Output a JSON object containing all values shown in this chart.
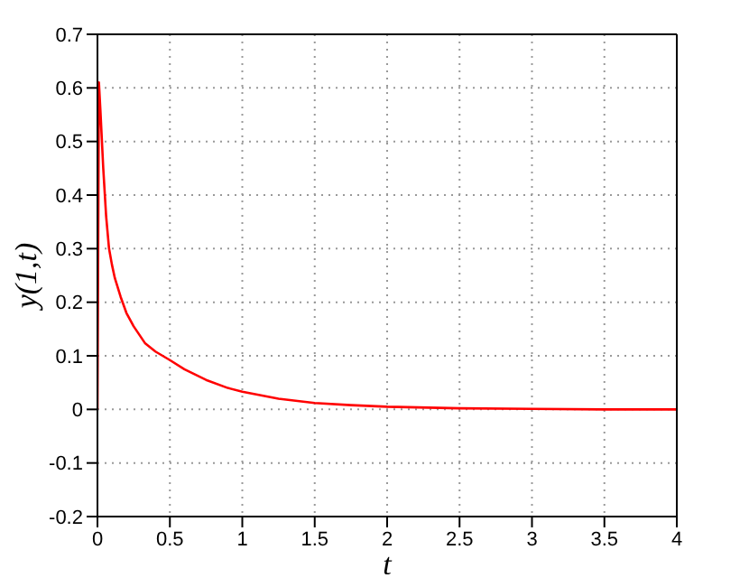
{
  "chart_data": {
    "type": "line",
    "xlabel": "t",
    "ylabel": "y(1,t)",
    "x": [
      0,
      0.01,
      0.02,
      0.04,
      0.06,
      0.08,
      0.1,
      0.12,
      0.16,
      0.2,
      0.25,
      0.33,
      0.4,
      0.5,
      0.6,
      0.75,
      0.9,
      1,
      1.25,
      1.5,
      1.75,
      2,
      2.5,
      3,
      3.5,
      4
    ],
    "series": [
      {
        "color": "#ff0000",
        "values": [
          0,
          0.61,
          0.56,
          0.45,
          0.36,
          0.3,
          0.27,
          0.245,
          0.21,
          0.18,
          0.155,
          0.123,
          0.108,
          0.092,
          0.075,
          0.055,
          0.04,
          0.033,
          0.02,
          0.012,
          0.008,
          0.005,
          0.002,
          0.001,
          0,
          0
        ]
      }
    ],
    "xlim": [
      0,
      4
    ],
    "ylim": [
      -0.2,
      0.7
    ],
    "xticks": [
      0,
      0.5,
      1,
      1.5,
      2,
      2.5,
      3,
      3.5,
      4
    ],
    "yticks": [
      -0.2,
      -0.1,
      0,
      0.1,
      0.2,
      0.3,
      0.4,
      0.5,
      0.6,
      0.7
    ],
    "grid": true,
    "marker": "none",
    "line_style": "solid"
  }
}
